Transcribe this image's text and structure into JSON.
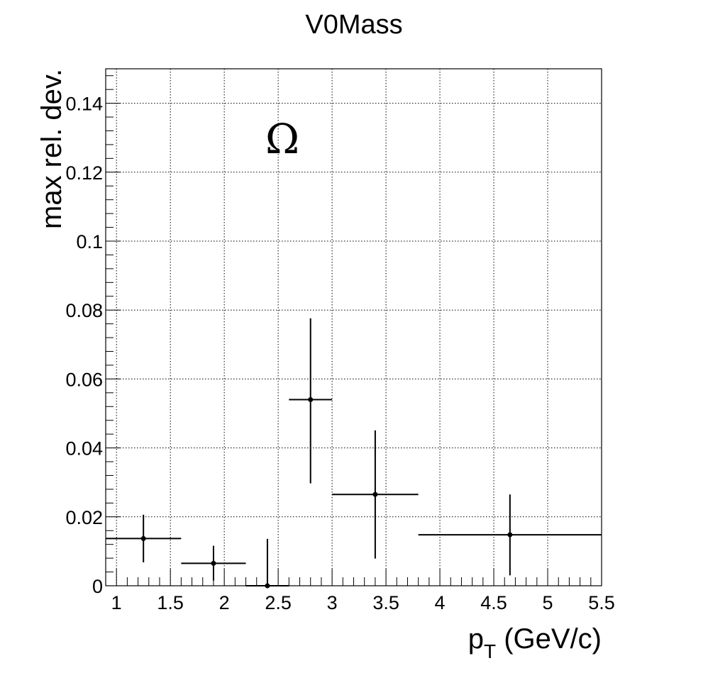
{
  "chart_data": {
    "type": "scatter",
    "title": "V0Mass",
    "xlabel": {
      "main": "p",
      "sub": "T",
      "rest": " (GeV/c)"
    },
    "ylabel": "max rel. dev.",
    "annotation": "Ω",
    "xlim": [
      0.9,
      5.5
    ],
    "ylim": [
      0,
      0.15
    ],
    "xticks": [
      1,
      1.5,
      2,
      2.5,
      3,
      3.5,
      4,
      4.5,
      5,
      5.5
    ],
    "xtick_labels": [
      "1",
      "1.5",
      "2",
      "2.5",
      "3",
      "3.5",
      "4",
      "4.5",
      "5",
      "5.5"
    ],
    "yticks": [
      0,
      0.02,
      0.04,
      0.06,
      0.08,
      0.1,
      0.12,
      0.14
    ],
    "ytick_labels": [
      "0",
      "0.02",
      "0.04",
      "0.06",
      "0.08",
      "0.1",
      "0.12",
      "0.14"
    ],
    "grid": true,
    "points": [
      {
        "x": 1.25,
        "y": 0.0137,
        "xlo": 0.9,
        "xhi": 1.6,
        "ylo": 0.0068,
        "yhi": 0.0206
      },
      {
        "x": 1.9,
        "y": 0.0065,
        "xlo": 1.6,
        "xhi": 2.2,
        "ylo": 0.0015,
        "yhi": 0.0116
      },
      {
        "x": 2.4,
        "y": 0.0,
        "xlo": 2.2,
        "xhi": 2.6,
        "ylo": 0.0,
        "yhi": 0.0136
      },
      {
        "x": 2.8,
        "y": 0.054,
        "xlo": 2.6,
        "xhi": 3.0,
        "ylo": 0.0297,
        "yhi": 0.0776
      },
      {
        "x": 3.4,
        "y": 0.0265,
        "xlo": 3.0,
        "xhi": 3.8,
        "ylo": 0.0079,
        "yhi": 0.0451
      },
      {
        "x": 4.65,
        "y": 0.0148,
        "xlo": 3.8,
        "xhi": 5.5,
        "ylo": 0.003,
        "yhi": 0.0265
      }
    ],
    "colors": {
      "marker": "#000000",
      "grid": "#000000",
      "frame": "#000000"
    }
  }
}
